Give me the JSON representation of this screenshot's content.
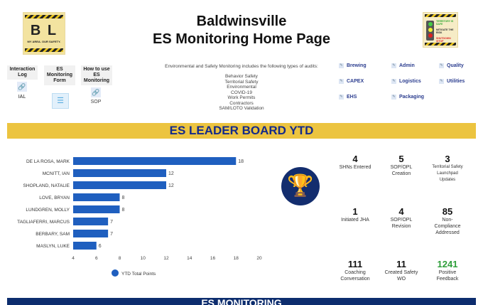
{
  "header": {
    "title_line1": "Baldwinsville",
    "title_line2": "ES Monitoring Home Page",
    "logo_left_text": "B L",
    "logo_left_tagline": "MY AREA. OUR SAFETY.",
    "logo_right_lines": [
      "TERRITORY IS SAFE",
      "MITIGATE THE RISK",
      "SHUTDOWN /STOP"
    ]
  },
  "links": [
    {
      "label": "Interaction Log",
      "caption": "IAL",
      "icon": "link-icon"
    },
    {
      "label": "ES Monitoring Form",
      "caption": "",
      "icon": "form-icon"
    },
    {
      "label": "How to use ES Monitoring",
      "caption": "SOP",
      "icon": "link-icon"
    }
  ],
  "audits": {
    "intro": "Environmental and Safety Monitoring includes the following types of audits:",
    "types": [
      "Behavior Safety",
      "Territorial Safety",
      "Environmental",
      "COVID-19",
      "Work Permits",
      "Contractors",
      "SAM/LOTO Validation"
    ]
  },
  "areas": [
    "Brewing",
    "Admin",
    "Quality",
    "CAPEX",
    "Logistics",
    "Utilities",
    "EHS",
    "Packaging"
  ],
  "banner": "ES LEADER BOARD YTD",
  "bottom_banner": "ES MONITORING",
  "chart_data": {
    "type": "bar",
    "orientation": "horizontal",
    "categories": [
      "DE LA ROSA, MARK",
      "MCNITT, IAN",
      "SHOPLAND, NATALIE",
      "LOVE, BRYAN",
      "LUNDGREN, MOLLY",
      "TAGLIAFERRI, MARCUS",
      "BERBARY, SAM",
      "MASLYN, LUKE"
    ],
    "series": [
      {
        "name": "YTD Total Points",
        "values": [
          18,
          12,
          12,
          8,
          8,
          7,
          7,
          6
        ]
      }
    ],
    "xlim": [
      4,
      20
    ],
    "xticks": [
      "4",
      "6",
      "8",
      "10",
      "12",
      "14",
      "16",
      "18",
      "20"
    ],
    "legend": "bottom",
    "color": "#1f5fbf",
    "grid": false
  },
  "stats": [
    {
      "value": "4",
      "label": "SHNs Entered"
    },
    {
      "value": "5",
      "label": "SOP/OPL Creation"
    },
    {
      "value": "3",
      "label": "Territorial Safety Launchpad Updates"
    },
    {
      "value": "1",
      "label": "Initiated JHA"
    },
    {
      "value": "4",
      "label": "SOP/OPL Revision"
    },
    {
      "value": "85",
      "label": "Non-Compliance Addressed"
    },
    {
      "value": "111",
      "label": "Coaching Conversation"
    },
    {
      "value": "11",
      "label": "Created Safety WO"
    },
    {
      "value": "1241",
      "label": "Positive Feedback",
      "color": "#2e9e3a"
    }
  ]
}
